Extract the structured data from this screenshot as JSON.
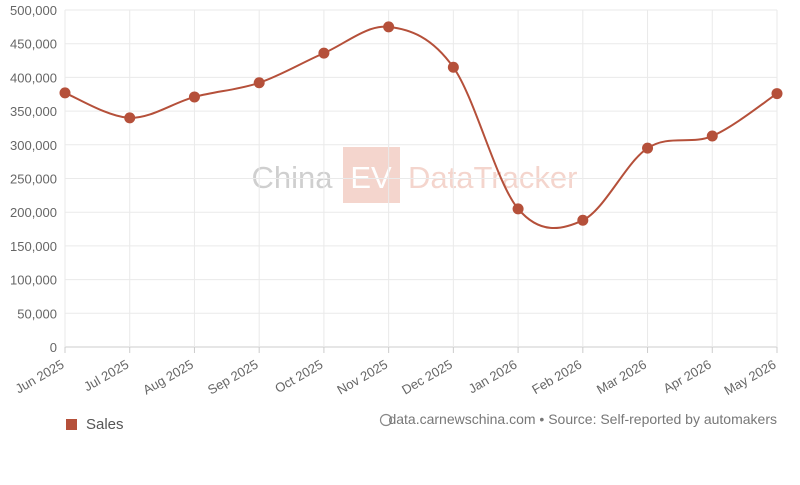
{
  "chart_data": {
    "type": "line",
    "categories": [
      "Jun 2025",
      "Jul 2025",
      "Aug 2025",
      "Sep 2025",
      "Oct 2025",
      "Nov 2025",
      "Dec 2025",
      "Jan 2026",
      "Feb 2026",
      "Mar 2026",
      "Apr 2026",
      "May 2026"
    ],
    "series": [
      {
        "name": "Sales",
        "color": "#b5503a",
        "values": [
          377000,
          340000,
          371000,
          392000,
          436000,
          475000,
          415000,
          205000,
          188000,
          295000,
          313000,
          376000
        ]
      }
    ],
    "ylim": [
      0,
      500000
    ],
    "yticks": [
      0,
      {
        "value": 50000,
        "label": "50,000"
      },
      {
        "value": 100000,
        "label": "100,000"
      },
      {
        "value": 150000,
        "label": "150,000"
      },
      {
        "value": 200000,
        "label": "200,000"
      },
      {
        "value": 250000,
        "label": "250,000"
      },
      {
        "value": 300000,
        "label": "300,000"
      },
      {
        "value": 350000,
        "label": "350,000"
      },
      {
        "value": 400000,
        "label": "400,000"
      },
      {
        "value": 450000,
        "label": "450,000"
      },
      {
        "value": 500000,
        "label": "500,000"
      }
    ],
    "grid": true,
    "watermark": [
      "China",
      "EV",
      "DataTracker"
    ],
    "source": "data.carnewschina.com • Source: Self-reported by automakers"
  }
}
